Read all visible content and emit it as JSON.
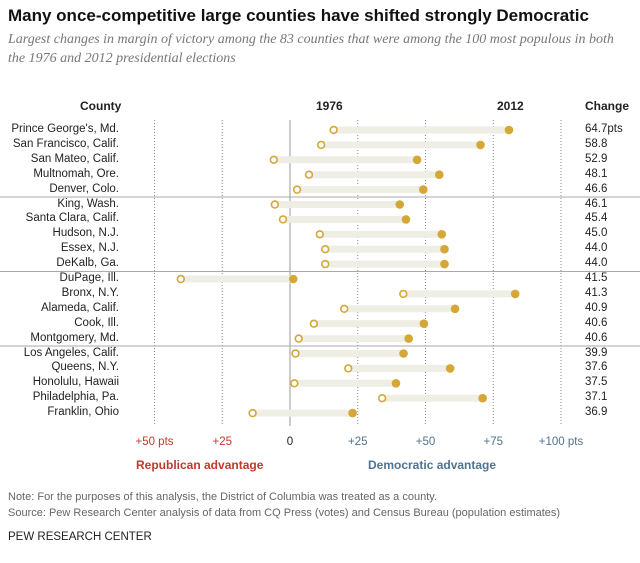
{
  "title": "Many once-competitive large counties have shifted strongly Democratic",
  "subtitle": "Largest changes in margin of victory among the 83 counties that were among the 100 most populous in both the 1976 and 2012 presidential elections",
  "chart_data": {
    "type": "dot-range",
    "headers": {
      "county": "County",
      "y1976": "1976",
      "y2012": "2012",
      "change": "Change"
    },
    "xlim": [
      -50,
      100
    ],
    "ticks": [
      {
        "v": -50,
        "label": "+50 pts"
      },
      {
        "v": -25,
        "label": "+25"
      },
      {
        "v": 0,
        "label": "0"
      },
      {
        "v": 25,
        "label": "+25"
      },
      {
        "v": 50,
        "label": "+50"
      },
      {
        "v": 75,
        "label": "+75"
      },
      {
        "v": 100,
        "label": "+100 pts"
      }
    ],
    "rep_label": "Republican advantage",
    "dem_label": "Democratic advantage",
    "colors": {
      "dot": "#d4a737",
      "track": "#efeee4",
      "rep": "#c0392b",
      "dem": "#4f7390"
    },
    "groups_after": [
      4,
      9,
      14
    ],
    "rows": [
      {
        "county": "Prince George's, Md.",
        "v1976": 16.1,
        "v2012": 80.8,
        "change": "64.7pts"
      },
      {
        "county": "San Francisco, Calif.",
        "v1976": 11.5,
        "v2012": 70.3,
        "change": "58.8"
      },
      {
        "county": "San Mateo, Calif.",
        "v1976": -6.0,
        "v2012": 46.9,
        "change": "52.9"
      },
      {
        "county": "Multnomah, Ore.",
        "v1976": 7.0,
        "v2012": 55.1,
        "change": "48.1"
      },
      {
        "county": "Denver, Colo.",
        "v1976": 2.6,
        "v2012": 49.2,
        "change": "46.6"
      },
      {
        "county": "King, Wash.",
        "v1976": -5.6,
        "v2012": 40.5,
        "change": "46.1"
      },
      {
        "county": "Santa Clara, Calif.",
        "v1976": -2.6,
        "v2012": 42.8,
        "change": "45.4"
      },
      {
        "county": "Hudson, N.J.",
        "v1976": 11.0,
        "v2012": 56.0,
        "change": "45.0"
      },
      {
        "county": "Essex, N.J.",
        "v1976": 13.0,
        "v2012": 57.0,
        "change": "44.0"
      },
      {
        "county": "DeKalb, Ga.",
        "v1976": 13.0,
        "v2012": 57.0,
        "change": "44.0"
      },
      {
        "county": "DuPage, Ill.",
        "v1976": -40.3,
        "v2012": 1.2,
        "change": "41.5"
      },
      {
        "county": "Bronx, N.Y.",
        "v1976": 41.8,
        "v2012": 83.1,
        "change": "41.3"
      },
      {
        "county": "Alameda, Calif.",
        "v1976": 20.0,
        "v2012": 60.9,
        "change": "40.9"
      },
      {
        "county": "Cook, Ill.",
        "v1976": 8.8,
        "v2012": 49.4,
        "change": "40.6"
      },
      {
        "county": "Montgomery, Md.",
        "v1976": 3.2,
        "v2012": 43.8,
        "change": "40.6"
      },
      {
        "county": "Los Angeles, Calif.",
        "v1976": 2.0,
        "v2012": 41.9,
        "change": "39.9"
      },
      {
        "county": "Queens, N.Y.",
        "v1976": 21.5,
        "v2012": 59.1,
        "change": "37.6"
      },
      {
        "county": "Honolulu, Hawaii",
        "v1976": 1.6,
        "v2012": 39.1,
        "change": "37.5"
      },
      {
        "county": "Philadelphia, Pa.",
        "v1976": 34.0,
        "v2012": 71.1,
        "change": "37.1"
      },
      {
        "county": "Franklin, Ohio",
        "v1976": -13.8,
        "v2012": 23.1,
        "change": "36.9"
      }
    ]
  },
  "note": "Note: For the purposes of this analysis, the District of Columbia was treated as a county.",
  "source": "Source: Pew Research Center analysis of data from CQ Press (votes) and Census Bureau (population estimates)",
  "footer": "PEW RESEARCH CENTER"
}
